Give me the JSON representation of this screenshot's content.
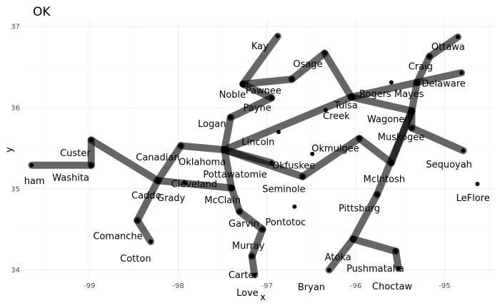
{
  "chart_data": {
    "type": "scatter",
    "title": "OK",
    "xlabel": "x",
    "ylabel": "y",
    "xlim": [
      -99.75,
      -94.4
    ],
    "ylim": [
      33.9,
      37.08
    ],
    "x_ticks": [
      -99,
      -98,
      -97,
      -96,
      -95
    ],
    "x_tick_labels": [
      "-99",
      "-98",
      "-97",
      "-96",
      "-95"
    ],
    "y_ticks": [
      34,
      35,
      36,
      37
    ],
    "y_tick_labels": [
      "34",
      "35",
      "36",
      "37"
    ],
    "grid": true,
    "nodes": [
      {
        "name": "Kay",
        "x": -96.88,
        "y": 36.88
      },
      {
        "name": "Osage",
        "x": -96.35,
        "y": 36.67
      },
      {
        "name": "Ottawa",
        "x": -94.85,
        "y": 36.87
      },
      {
        "name": "Craig",
        "x": -95.17,
        "y": 36.63
      },
      {
        "name": "Noble",
        "x": -97.27,
        "y": 36.29
      },
      {
        "name": "Pawnee",
        "x": -96.72,
        "y": 36.35
      },
      {
        "name": "Payne",
        "x": -96.95,
        "y": 36.12
      },
      {
        "name": "Rogers",
        "x": -95.6,
        "y": 36.31
      },
      {
        "name": "Mayes",
        "x": -95.31,
        "y": 36.31
      },
      {
        "name": "Delaware",
        "x": -94.81,
        "y": 36.43
      },
      {
        "name": "Tulsa",
        "x": -96.05,
        "y": 36.13
      },
      {
        "name": "Creek",
        "x": -96.34,
        "y": 35.97
      },
      {
        "name": "Wagoner",
        "x": -95.37,
        "y": 35.96
      },
      {
        "name": "Logan",
        "x": -97.41,
        "y": 35.88
      },
      {
        "name": "Lincoln",
        "x": -96.87,
        "y": 35.7
      },
      {
        "name": "Muskogee",
        "x": -95.37,
        "y": 35.75
      },
      {
        "name": "Okmulgee",
        "x": -95.96,
        "y": 35.62
      },
      {
        "name": "Sequoyah",
        "x": -94.79,
        "y": 35.47
      },
      {
        "name": "Custer",
        "x": -98.98,
        "y": 35.6
      },
      {
        "name": "Canadian",
        "x": -97.97,
        "y": 35.53
      },
      {
        "name": "Oklahoma",
        "x": -97.48,
        "y": 35.48
      },
      {
        "name": "Okfuskee",
        "x": -96.49,
        "y": 35.43
      },
      {
        "name": "Pottawatomie",
        "x": -96.95,
        "y": 35.32
      },
      {
        "name": "Seminole",
        "x": -96.6,
        "y": 35.15
      },
      {
        "name": "McIntosh",
        "x": -95.6,
        "y": 35.32
      },
      {
        "name": "Beckham",
        "x": -99.65,
        "y": 35.29
      },
      {
        "name": "Washita",
        "x": -98.98,
        "y": 35.29
      },
      {
        "name": "Caddo",
        "x": -98.23,
        "y": 35.1
      },
      {
        "name": "Cleveland",
        "x": -97.92,
        "y": 35.07
      },
      {
        "name": "Grady",
        "x": -97.93,
        "y": 35.08
      },
      {
        "name": "McClain",
        "x": -97.4,
        "y": 35.01
      },
      {
        "name": "LeFlore",
        "x": -94.63,
        "y": 35.06
      },
      {
        "name": "Pittsburg",
        "x": -95.76,
        "y": 34.93
      },
      {
        "name": "Garvin",
        "x": -97.31,
        "y": 34.72
      },
      {
        "name": "Pontotoc",
        "x": -96.69,
        "y": 34.78
      },
      {
        "name": "Murray",
        "x": -97.05,
        "y": 34.5
      },
      {
        "name": "Comanche",
        "x": -98.46,
        "y": 34.61
      },
      {
        "name": "Cotton",
        "x": -98.31,
        "y": 34.35
      },
      {
        "name": "Atoka",
        "x": -96.03,
        "y": 34.38
      },
      {
        "name": "Pushmataha",
        "x": -95.55,
        "y": 34.23
      },
      {
        "name": "Carter",
        "x": -97.17,
        "y": 34.17
      },
      {
        "name": "Choctaw",
        "x": -95.52,
        "y": 34.02
      },
      {
        "name": "Love",
        "x": -97.14,
        "y": 33.94
      },
      {
        "name": "Bryan",
        "x": -96.3,
        "y": 34.0
      }
    ],
    "edges": [
      [
        "Beckham",
        "Washita"
      ],
      [
        "Washita",
        "Custer"
      ],
      [
        "Custer",
        "Caddo"
      ],
      [
        "Caddo",
        "Comanche"
      ],
      [
        "Comanche",
        "Cotton"
      ],
      [
        "Caddo",
        "Canadian"
      ],
      [
        "Canadian",
        "Oklahoma"
      ],
      [
        "Caddo",
        "McClain"
      ],
      [
        "Oklahoma",
        "McClain"
      ],
      [
        "Oklahoma",
        "Logan"
      ],
      [
        "Logan",
        "Payne"
      ],
      [
        "Payne",
        "Noble"
      ],
      [
        "Noble",
        "Pawnee"
      ],
      [
        "Noble",
        "Kay"
      ],
      [
        "Pawnee",
        "Osage"
      ],
      [
        "Osage",
        "Tulsa"
      ],
      [
        "Oklahoma",
        "Tulsa"
      ],
      [
        "Tulsa",
        "Mayes"
      ],
      [
        "Mayes",
        "Delaware"
      ],
      [
        "Mayes",
        "Craig"
      ],
      [
        "Craig",
        "Ottawa"
      ],
      [
        "Mayes",
        "Wagoner"
      ],
      [
        "Tulsa",
        "Wagoner"
      ],
      [
        "Wagoner",
        "Muskogee"
      ],
      [
        "Muskogee",
        "Sequoyah"
      ],
      [
        "Wagoner",
        "McIntosh"
      ],
      [
        "Okmulgee",
        "McIntosh"
      ],
      [
        "Okmulgee",
        "Seminole"
      ],
      [
        "Oklahoma",
        "Seminole"
      ],
      [
        "Oklahoma",
        "Pottawatomie"
      ],
      [
        "McClain",
        "Garvin"
      ],
      [
        "Garvin",
        "Murray"
      ],
      [
        "Murray",
        "Carter"
      ],
      [
        "Carter",
        "Love"
      ],
      [
        "Wagoner",
        "Pittsburg"
      ],
      [
        "Pittsburg",
        "Atoka"
      ],
      [
        "Atoka",
        "Bryan"
      ],
      [
        "Atoka",
        "Pushmataha"
      ],
      [
        "Pushmataha",
        "Choctaw"
      ]
    ],
    "labels": [
      {
        "text": "Kay",
        "x": -97.08,
        "y": 36.76
      },
      {
        "text": "Osage",
        "x": -96.54,
        "y": 36.54
      },
      {
        "text": "Ottawa",
        "x": -94.96,
        "y": 36.75
      },
      {
        "text": "Craig",
        "x": -95.27,
        "y": 36.51
      },
      {
        "text": "Delaware",
        "x": -95.01,
        "y": 36.3
      },
      {
        "text": "Noble",
        "x": -97.39,
        "y": 36.16
      },
      {
        "text": "Pawnee",
        "x": -97.04,
        "y": 36.21
      },
      {
        "text": "Payne",
        "x": -97.11,
        "y": 36.0
      },
      {
        "text": "Rogers",
        "x": -95.78,
        "y": 36.17
      },
      {
        "text": "Mayes",
        "x": -95.4,
        "y": 36.17
      },
      {
        "text": "Tulsa",
        "x": -96.11,
        "y": 36.03
      },
      {
        "text": "Creek",
        "x": -96.22,
        "y": 35.9
      },
      {
        "text": "Wagoner",
        "x": -95.64,
        "y": 35.86
      },
      {
        "text": "Logan",
        "x": -97.62,
        "y": 35.8
      },
      {
        "text": "Lincoln",
        "x": -97.1,
        "y": 35.58
      },
      {
        "text": "Muskogee",
        "x": -95.49,
        "y": 35.64
      },
      {
        "text": "Okmulgee",
        "x": -96.23,
        "y": 35.5
      },
      {
        "text": "Sequoyah",
        "x": -94.95,
        "y": 35.3
      },
      {
        "text": "Custer",
        "x": -99.16,
        "y": 35.44
      },
      {
        "text": "Canadian",
        "x": -98.23,
        "y": 35.39
      },
      {
        "text": "Oklahoma",
        "x": -97.73,
        "y": 35.33
      },
      {
        "text": "Okfuskee",
        "x": -96.7,
        "y": 35.29
      },
      {
        "text": "Pottawatomie",
        "x": -97.36,
        "y": 35.18
      },
      {
        "text": "McIntosh",
        "x": -95.68,
        "y": 35.12
      },
      {
        "text": "Washita",
        "x": -99.21,
        "y": 35.14
      },
      {
        "text": "Cleveland",
        "x": -97.82,
        "y": 35.06
      },
      {
        "text": "Seminole",
        "x": -96.81,
        "y": 35.0
      },
      {
        "text": "Caddo",
        "x": -98.36,
        "y": 34.92
      },
      {
        "text": "Grady",
        "x": -98.08,
        "y": 34.89
      },
      {
        "text": "McClain",
        "x": -97.5,
        "y": 34.86
      },
      {
        "text": "LeFlore",
        "x": -94.68,
        "y": 34.89
      },
      {
        "text": "Pittsburg",
        "x": -95.96,
        "y": 34.76
      },
      {
        "text": "Garvin",
        "x": -97.26,
        "y": 34.57
      },
      {
        "text": "Pontotoc",
        "x": -96.79,
        "y": 34.59
      },
      {
        "text": "Comanche",
        "x": -98.68,
        "y": 34.42
      },
      {
        "text": "Murray",
        "x": -97.21,
        "y": 34.3
      },
      {
        "text": "Cotton",
        "x": -98.48,
        "y": 34.14
      },
      {
        "text": "Atoka",
        "x": -96.2,
        "y": 34.16
      },
      {
        "text": "Pushmataha",
        "x": -95.78,
        "y": 34.02
      },
      {
        "text": "Carter",
        "x": -97.27,
        "y": 33.94
      },
      {
        "text": "Choctaw",
        "x": -95.59,
        "y": 33.8
      },
      {
        "text": "Bryan",
        "x": -96.5,
        "y": 33.79
      },
      {
        "text": "Love",
        "x": -97.22,
        "y": 33.72
      },
      {
        "text": "ham",
        "x": -99.62,
        "y": 35.1
      }
    ]
  }
}
